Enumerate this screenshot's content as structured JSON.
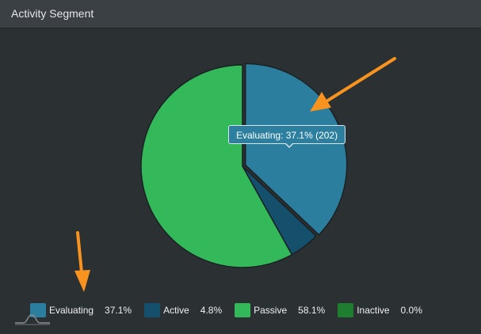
{
  "widget": {
    "title": "Activity Segment"
  },
  "tooltip": {
    "text": "Evaluating: 37.1% (202)"
  },
  "chart_data": {
    "type": "pie",
    "title": "",
    "slices": [
      {
        "name": "Evaluating",
        "percent": 37.1,
        "count": 202,
        "percent_label": "37.1%",
        "color": "#2b7e9e"
      },
      {
        "name": "Active",
        "percent": 4.8,
        "percent_label": "4.8%",
        "color": "#14506b"
      },
      {
        "name": "Passive",
        "percent": 58.1,
        "percent_label": "58.1%",
        "color": "#33b85a"
      },
      {
        "name": "Inactive",
        "percent": 0.0,
        "percent_label": "0.0%",
        "color": "#1f7d2f"
      }
    ],
    "highlighted": "Evaluating",
    "legend_position": "bottom"
  },
  "colors": {
    "background": "#2b3033",
    "header": "#3a4044",
    "annotation_arrow": "#f7931e"
  },
  "icons": {
    "corner": "bell-curve-icon"
  }
}
